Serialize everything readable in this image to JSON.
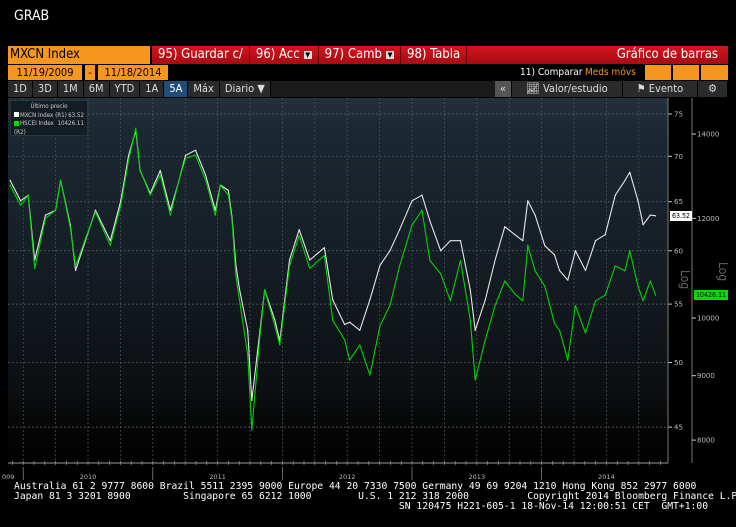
{
  "window": {
    "title": "GRAB"
  },
  "toolbar": {
    "ticker": "MXCN Index",
    "buttons": [
      {
        "label": "95) Guardar c/",
        "dropdown": false
      },
      {
        "label": "96) Acc",
        "dropdown": true
      },
      {
        "label": "97) Camb",
        "dropdown": true
      },
      {
        "label": "98) Tabla",
        "dropdown": false
      }
    ],
    "chart_type": "Gráfico de barras",
    "start_date": "11/19/2009",
    "date_sep": "-",
    "end_date": "11/18/2014",
    "compare": "11) Comparar",
    "moving_avgs": "Meds móvs",
    "periods": [
      "1D",
      "3D",
      "1M",
      "6M",
      "YTD",
      "1A",
      "5A",
      "Máx"
    ],
    "selected_period": "5A",
    "frequency": "Diario ▼",
    "collapse": "«",
    "study": "Valor/estudio",
    "event": "Evento",
    "icons": {
      "study": "line-chart-icon",
      "event": "flag-icon",
      "settings": "gear-icon"
    }
  },
  "legend": {
    "header": "Último precio",
    "items": [
      {
        "name": "MXCN Index",
        "axis": "(R1)",
        "value": "63.52",
        "color": "#ffffff"
      },
      {
        "name": "HSCEI Index",
        "axis": "(R2)",
        "value": "10426.11",
        "color": "#00e000"
      }
    ]
  },
  "axes": {
    "r1_label": "Log",
    "r2_label": "Log",
    "r1_tag": "63.52",
    "r2_tag": "10426.11"
  },
  "chart_data": {
    "type": "line",
    "scale": "log",
    "grid": true,
    "legend_position": "top-left",
    "x_ticks": [
      "009",
      "2010",
      "2011",
      "2012",
      "2013",
      "2014"
    ],
    "r1": {
      "ticks": [
        45,
        50,
        55,
        60,
        65,
        70,
        75
      ],
      "range": [
        43.5,
        77
      ]
    },
    "r2": {
      "ticks": [
        8000,
        9000,
        10000,
        12000,
        14000
      ],
      "range": [
        7800,
        14500
      ]
    },
    "dates": [
      "2009-11-25",
      "2009-12-24",
      "2010-01-15",
      "2010-02-03",
      "2010-03-03",
      "2010-04-01",
      "2010-04-15",
      "2010-05-12",
      "2010-05-27",
      "2010-06-24",
      "2010-07-22",
      "2010-09-03",
      "2010-10-02",
      "2010-10-24",
      "2010-11-14",
      "2010-11-26",
      "2010-12-24",
      "2011-01-22",
      "2011-02-20",
      "2011-03-14",
      "2011-04-02",
      "2011-04-30",
      "2011-05-28",
      "2011-06-25",
      "2011-07-09",
      "2011-08-01",
      "2011-08-11",
      "2011-08-22",
      "2011-09-02",
      "2011-09-25",
      "2011-10-06",
      "2011-10-29",
      "2011-11-12",
      "2011-12-10",
      "2011-12-24",
      "2012-01-21",
      "2012-02-18",
      "2012-03-17",
      "2012-04-28",
      "2012-05-21",
      "2012-06-24",
      "2012-07-08",
      "2012-08-06",
      "2012-09-04",
      "2012-10-02",
      "2012-10-30",
      "2012-11-27",
      "2013-01-01",
      "2013-01-29",
      "2013-02-21",
      "2013-03-21",
      "2013-04-18",
      "2013-05-16",
      "2013-06-13",
      "2013-06-27",
      "2013-07-25",
      "2013-08-22",
      "2013-09-19",
      "2013-10-17",
      "2013-11-09",
      "2013-11-23",
      "2013-12-13",
      "2014-01-10",
      "2014-02-07",
      "2014-02-21",
      "2014-03-14",
      "2014-04-05",
      "2014-05-03",
      "2014-05-31",
      "2014-06-28",
      "2014-07-26",
      "2014-08-23",
      "2014-09-06",
      "2014-09-29",
      "2014-10-13",
      "2014-11-03",
      "2014-11-18"
    ],
    "series": [
      {
        "name": "MXCN Index",
        "axis": "R1",
        "color": "#e6e6e6",
        "values": [
          67.3,
          65.1,
          65.7,
          59.1,
          63.6,
          64.1,
          67.3,
          62.6,
          58.1,
          61.0,
          64.1,
          61.0,
          65.1,
          70.1,
          73.0,
          68.4,
          65.9,
          68.4,
          64.1,
          67.3,
          70.1,
          70.7,
          67.9,
          64.1,
          66.8,
          66.2,
          63.4,
          58.6,
          56.3,
          52.7,
          47.0,
          52.7,
          56.3,
          53.6,
          51.8,
          59.1,
          62.1,
          59.1,
          60.3,
          55.4,
          53.2,
          53.4,
          52.7,
          55.4,
          58.6,
          60.0,
          62.1,
          65.1,
          65.7,
          63.0,
          60.0,
          61.0,
          61.0,
          56.3,
          52.7,
          55.4,
          59.1,
          62.4,
          61.6,
          61.0,
          65.1,
          63.6,
          60.5,
          59.6,
          58.1,
          57.2,
          60.0,
          58.1,
          61.0,
          61.6,
          65.7,
          67.3,
          68.2,
          65.1,
          62.6,
          63.6,
          63.52
        ]
      },
      {
        "name": "HSCEI Index",
        "axis": "R2",
        "color": "#00d400",
        "values": [
          12750,
          12290,
          12520,
          10950,
          12000,
          12180,
          12870,
          11800,
          11000,
          11560,
          12140,
          11420,
          12290,
          13350,
          14150,
          13110,
          12520,
          12990,
          12070,
          12870,
          13390,
          13470,
          12870,
          12070,
          12750,
          12520,
          11960,
          10800,
          10320,
          9350,
          8150,
          9690,
          10530,
          9860,
          9520,
          11000,
          11630,
          10950,
          11210,
          9960,
          9610,
          9260,
          9520,
          9010,
          9860,
          10230,
          11000,
          11850,
          12180,
          11110,
          10840,
          10320,
          11110,
          9960,
          8930,
          9610,
          10230,
          10700,
          10450,
          10320,
          11420,
          10900,
          10600,
          9900,
          9780,
          9260,
          10230,
          9730,
          10320,
          10426,
          11000,
          10900,
          11310,
          10600,
          10320,
          10700,
          10426.11
        ]
      }
    ]
  },
  "footer": {
    "line1": "Australia 61 2 9777 8600 Brazil 5511 2395 9000 Europe 44 20 7330 7500 Germany 49 69 9204 1210 Hong Kong 852 2977 6000",
    "line2": "Japan 81 3 3201 8900         Singapore 65 6212 1000        U.S. 1 212 318 2000          Copyright 2014 Bloomberg Finance L.P.",
    "line3": "                                                                  SN 120475 H221-605-1 18-Nov-14 12:00:51 CET  GMT+1:00"
  }
}
